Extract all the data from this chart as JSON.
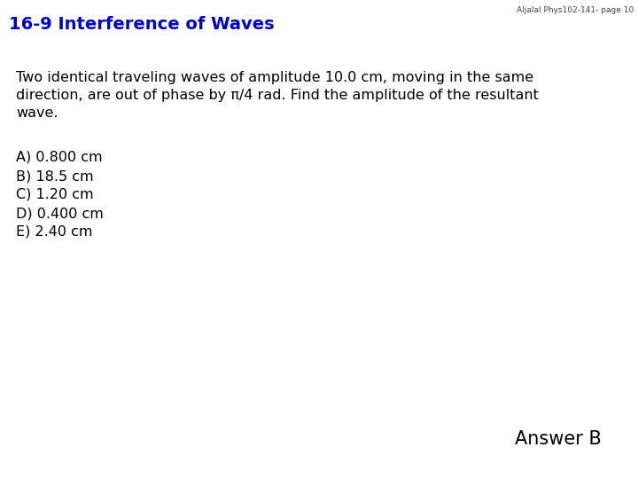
{
  "header_text": "16-9 Interference of Waves",
  "header_color": "#0000CC",
  "header_fontsize": 14,
  "watermark": "Aljalal Phys102-141- page 10",
  "watermark_fontsize": 6.5,
  "watermark_color": "#444444",
  "body_line1": "Two identical traveling waves of amplitude 10.0 cm, moving in the same",
  "body_line2": "direction, are out of phase by π/4 rad. Find the amplitude of the resultant",
  "body_line3": "wave.",
  "body_fontsize": 11.5,
  "body_color": "#000000",
  "choices": [
    "A) 0.800 cm",
    "B) 18.5 cm",
    "C) 1.20 cm",
    "D) 0.400 cm",
    "E) 2.40 cm"
  ],
  "choices_fontsize": 11.5,
  "choices_color": "#000000",
  "answer_text": "Answer B",
  "answer_fontsize": 15,
  "answer_color": "#000000",
  "background_color": "#ffffff"
}
